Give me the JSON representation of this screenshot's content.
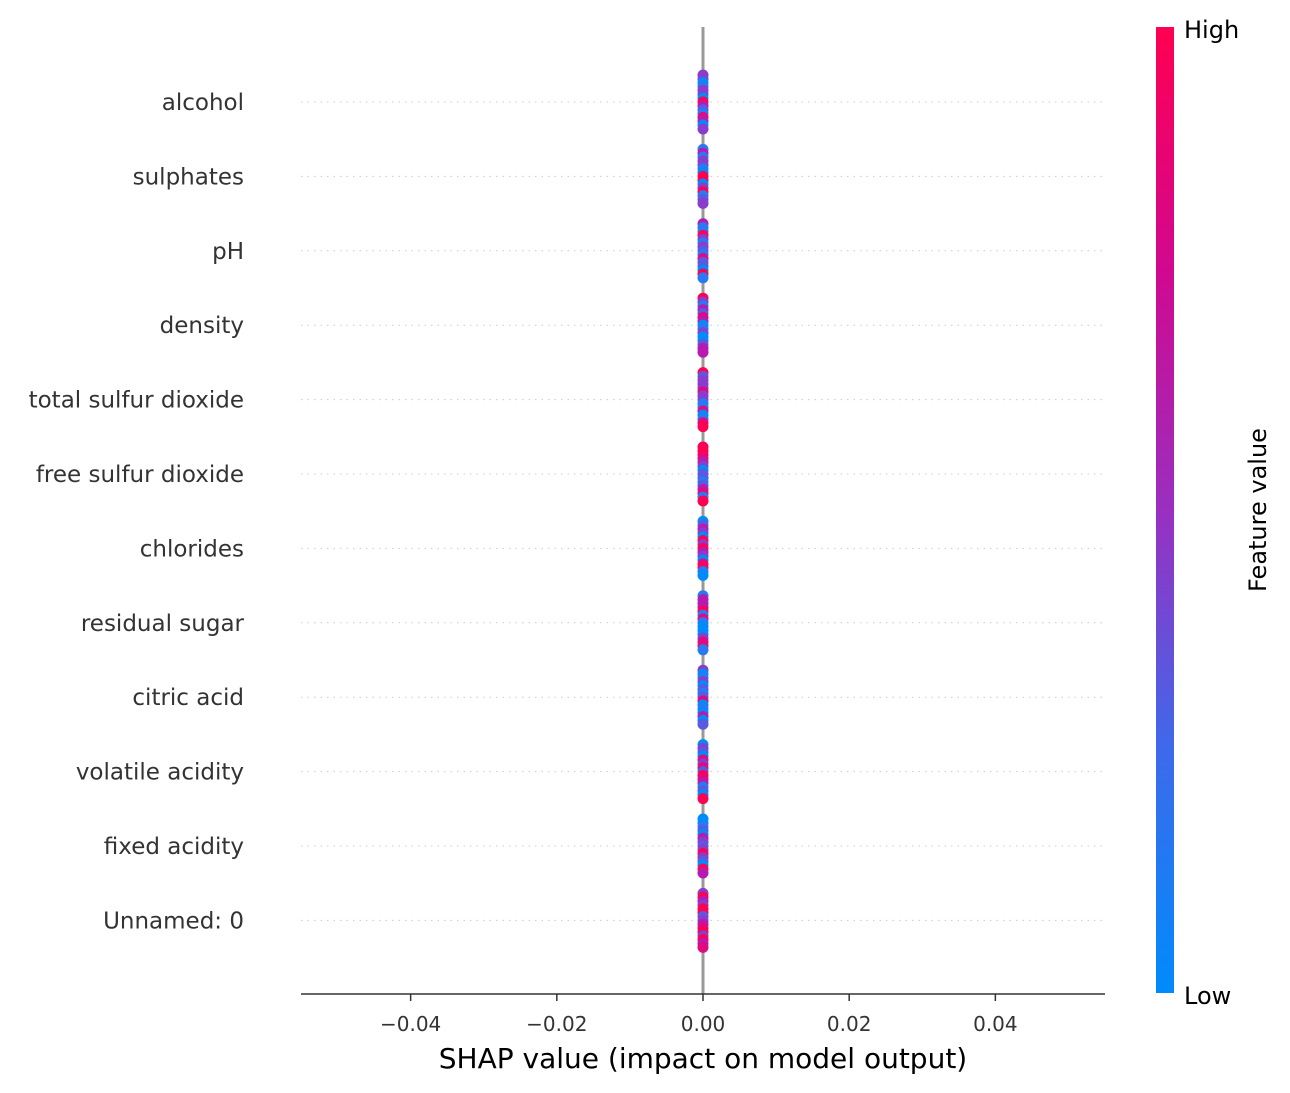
{
  "chart_data": {
    "type": "scatter",
    "subtype": "shap-beeswarm",
    "title": "",
    "xlabel": "SHAP value (impact on model output)",
    "ylabel": "",
    "xlim": [
      -0.055,
      0.055
    ],
    "xticks": [
      -0.04,
      -0.02,
      0.0,
      0.02,
      0.04
    ],
    "xtick_labels": [
      "−0.04",
      "−0.02",
      "0.00",
      "0.02",
      "0.04"
    ],
    "features": [
      "alcohol",
      "sulphates",
      "pH",
      "density",
      "total sulfur dioxide",
      "free sulfur dioxide",
      "chlorides",
      "residual sugar",
      "citric acid",
      "volatile acidity",
      "fixed acidity",
      "Unnamed: 0"
    ],
    "shap_value_all_features": 0.0,
    "zero_line": true,
    "row_gridlines": "dotted",
    "colorbar": {
      "label": "Feature value",
      "high_label": "High",
      "low_label": "Low",
      "high_color": "#ff0052",
      "low_color": "#008bfb"
    }
  }
}
